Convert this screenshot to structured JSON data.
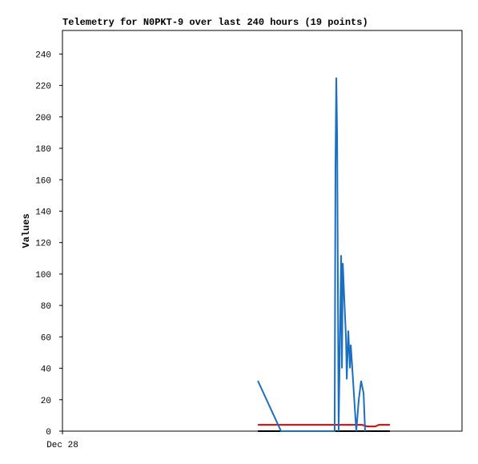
{
  "chart_data": {
    "type": "line",
    "title": "Telemetry for N0PKT-9 over last 240 hours (19 points)",
    "y_label": "Values",
    "xlim": [
      0,
      240
    ],
    "xticks": [
      {
        "value": 0,
        "label": "Dec 28"
      }
    ],
    "ylim": [
      0,
      255
    ],
    "yticks": [
      0,
      20,
      40,
      60,
      80,
      100,
      120,
      140,
      160,
      180,
      200,
      220,
      240
    ],
    "series": [
      {
        "color": "#000000",
        "x": [
          117.4,
          196.7
        ],
        "values": [
          0,
          0
        ]
      },
      {
        "color": "#e00000",
        "x": [
          117.4,
          172,
          180,
          183,
          188,
          190,
          196.7
        ],
        "values": [
          4,
          4,
          4,
          3,
          3,
          4,
          4
        ]
      },
      {
        "color": "#1a6fc0",
        "x": [
          117.4,
          131.3,
          163.5,
          164.0,
          164.5,
          165.0,
          165.9,
          167.4,
          167.9,
          168.4,
          169.3,
          170.3,
          170.8,
          171.7,
          172.7,
          173.2,
          176.5,
          178.0,
          179.4,
          180.9,
          181.8
        ],
        "values": [
          32,
          0,
          0,
          168,
          225,
          187,
          0,
          112,
          40,
          107,
          84,
          60,
          33,
          64,
          40,
          55,
          0,
          20,
          32,
          24,
          0
        ]
      }
    ]
  }
}
